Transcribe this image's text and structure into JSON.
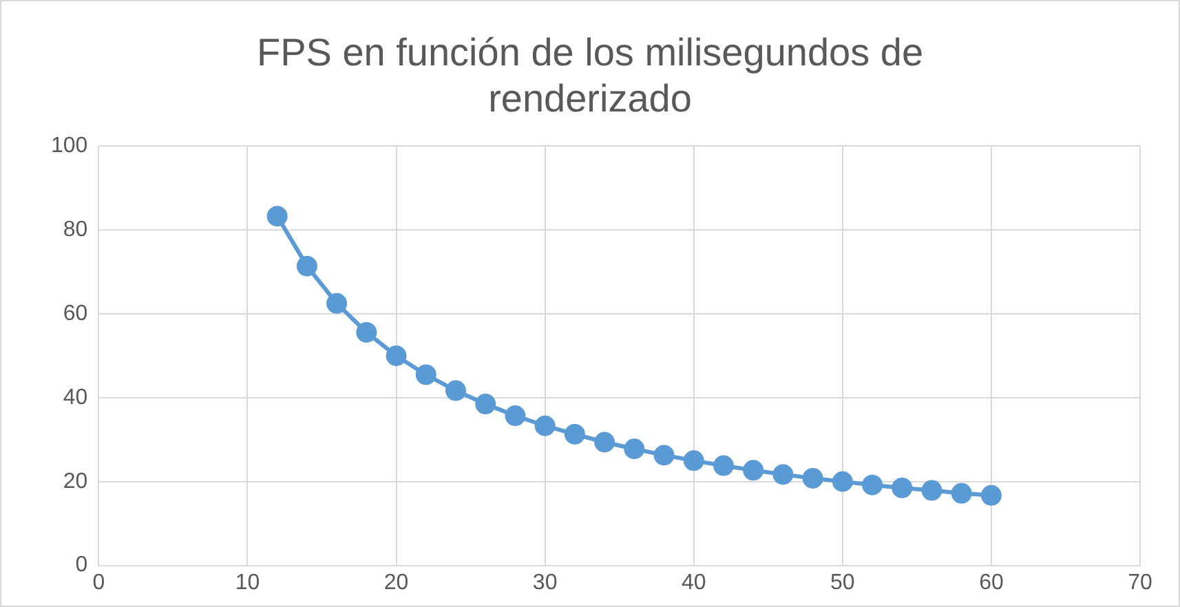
{
  "chart_data": {
    "type": "line",
    "title": "FPS en función de los milisegundos de renderizado",
    "x": [
      12,
      14,
      16,
      18,
      20,
      22,
      24,
      26,
      28,
      30,
      32,
      34,
      36,
      38,
      40,
      42,
      44,
      46,
      48,
      50,
      52,
      54,
      56,
      58,
      60
    ],
    "series": [
      {
        "color": "#5b9bd5",
        "values": [
          83.3,
          71.4,
          62.5,
          55.6,
          50,
          45.5,
          41.7,
          38.5,
          35.7,
          33.3,
          31.3,
          29.4,
          27.8,
          26.3,
          25,
          23.8,
          22.7,
          21.7,
          20.8,
          20,
          19.2,
          18.5,
          17.9,
          17.2,
          16.7
        ]
      }
    ],
    "xlim": [
      0,
      70
    ],
    "xticks": [
      0,
      10,
      20,
      30,
      40,
      50,
      60,
      70
    ],
    "ylim": [
      0,
      100
    ],
    "yticks": [
      0,
      20,
      40,
      60,
      80,
      100
    ],
    "grid": true,
    "legend": false,
    "marker": "circle",
    "line_style": "solid"
  }
}
